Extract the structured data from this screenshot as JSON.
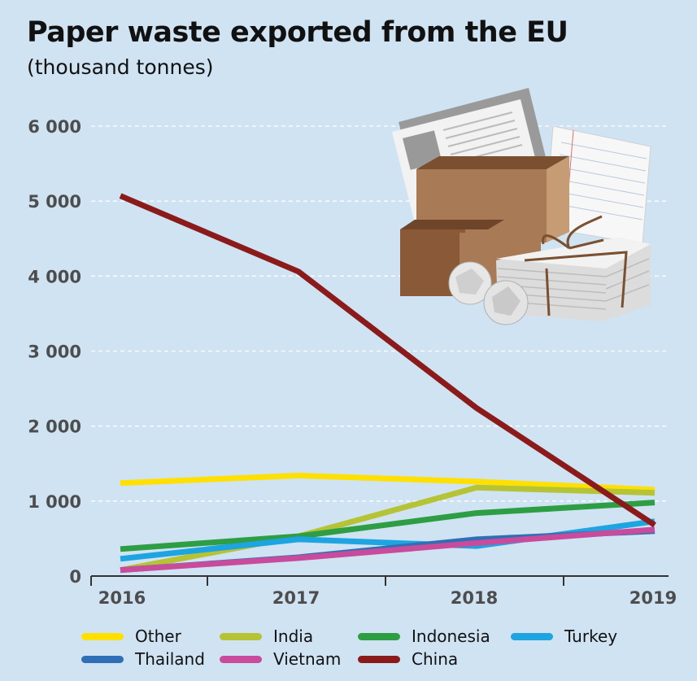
{
  "title": "Paper waste exported from the EU",
  "subtitle": "(thousand tonnes)",
  "chart_data": {
    "type": "line",
    "title": "Paper waste exported from the EU",
    "subtitle": "(thousand tonnes)",
    "x": [
      "2016",
      "2017",
      "2018",
      "2019"
    ],
    "yticks": [
      0,
      1000,
      2000,
      3000,
      4000,
      5000,
      6000
    ],
    "ytick_labels": [
      "0",
      "1 000",
      "2 000",
      "3 000",
      "4 000",
      "5 000",
      "6 000"
    ],
    "ylim": [
      0,
      6000
    ],
    "grid": "horizontal-dashed",
    "legend_position": "bottom",
    "series": [
      {
        "name": "Other",
        "color": "#ffe000",
        "values": [
          1240,
          1340,
          1260,
          1150
        ]
      },
      {
        "name": "India",
        "color": "#b5c334",
        "values": [
          80,
          530,
          1180,
          1110
        ]
      },
      {
        "name": "Indonesia",
        "color": "#2e9e44",
        "values": [
          360,
          530,
          840,
          980
        ]
      },
      {
        "name": "Turkey",
        "color": "#1ea4e0",
        "values": [
          230,
          490,
          400,
          730
        ]
      },
      {
        "name": "Thailand",
        "color": "#2e6fb5",
        "values": [
          80,
          250,
          490,
          600
        ]
      },
      {
        "name": "Vietnam",
        "color": "#c94c9c",
        "values": [
          80,
          240,
          440,
          620
        ]
      },
      {
        "name": "China",
        "color": "#8b1a1a",
        "values": [
          5070,
          4060,
          2240,
          680
        ]
      }
    ]
  }
}
